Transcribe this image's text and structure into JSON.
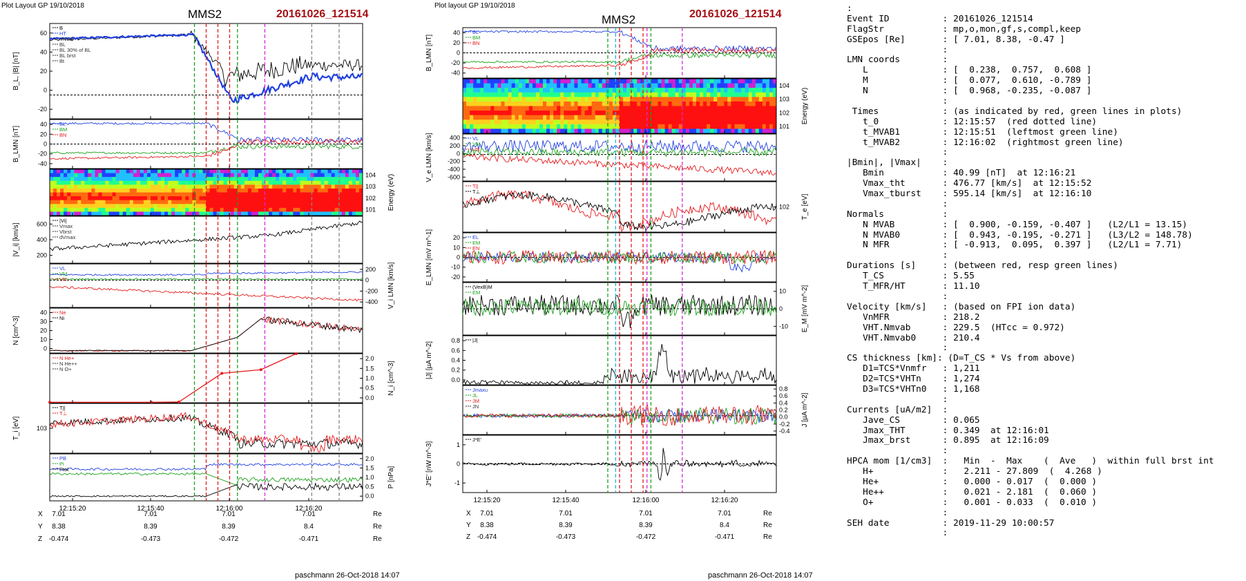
{
  "colors": {
    "black": "#000000",
    "red": "#e41a1c",
    "green": "#1ca01c",
    "blue": "#1f3fe0",
    "magenta": "#d62ad6",
    "cyan": "#18b8d8",
    "darkred": "#a50f15",
    "gray": "#888888"
  },
  "left_panel": {
    "header": "Plot Layout GP 19/10/2018",
    "title": "MMS2",
    "event": "20161026_121514",
    "footer": "paschmann 26-Oct-2018 14:07",
    "time_ticks": [
      "12:15:20",
      "12:15:40",
      "12:16:00",
      "12:16:20"
    ],
    "ephemeris": [
      {
        "label": "X",
        "values": [
          "7.01",
          "7.01",
          "7.01",
          "7.01"
        ],
        "unit": "Re"
      },
      {
        "label": "Y",
        "values": [
          "8.38",
          "8.39",
          "8.39",
          "8.4"
        ],
        "unit": "Re"
      },
      {
        "label": "Z",
        "values": [
          "-0.474",
          "-0.473",
          "-0.472",
          "-0.471"
        ],
        "unit": "Re"
      }
    ]
  },
  "right_panel": {
    "header": "Plot layout GP 19/10/2018",
    "title": "MMS2",
    "event": "20161026_121514",
    "footer": "paschmann 26-Oct-2018 14:07",
    "time_ticks": [
      "12:15:20",
      "12:15:40",
      "12:16:00",
      "12:16:20"
    ],
    "ephemeris": [
      {
        "label": "X",
        "values": [
          "7.01",
          "7.01",
          "7.01",
          "7.01"
        ],
        "unit": "Re"
      },
      {
        "label": "Y",
        "values": [
          "8.38",
          "8.39",
          "8.39",
          "8.4"
        ],
        "unit": "Re"
      },
      {
        "label": "Z",
        "values": [
          "-0.474",
          "-0.473",
          "-0.472",
          "-0.471"
        ],
        "unit": "Re"
      }
    ]
  },
  "chart_data": [
    {
      "type": "line",
      "panel": "left",
      "time_range": [
        "12:15:14",
        "12:16:34"
      ],
      "markers": {
        "green": [
          "12:15:51",
          "12:16:02"
        ],
        "red": [
          "12:15:54",
          "12:15:57",
          "12:16:00"
        ],
        "magenta": [
          "12:16:09"
        ],
        "gray": [
          "12:16:21",
          "12:16:28"
        ]
      },
      "subplots": [
        {
          "ylabel": "B_L, |B| [nT]",
          "ylim": [
            -20,
            60
          ],
          "yticks": [
            "60",
            "40",
            "20",
            "0",
            "-20"
          ],
          "axis": "left",
          "legend": [
            "B",
            "HT",
            "MVAB",
            "BL",
            "BL 30% of BL",
            "BL brst",
            "Bt"
          ],
          "series": [
            {
              "color": "black",
              "kind": "B_total"
            },
            {
              "color": "blue",
              "kind": "B_L"
            }
          ]
        },
        {
          "ylabel": "B_LMN [nT]",
          "ylim": [
            -50,
            50
          ],
          "yticks": [
            "40",
            "20",
            "0",
            "-20",
            "-40"
          ],
          "axis": "left",
          "legend": [
            "BL",
            "BM",
            "BN"
          ],
          "series": [
            {
              "color": "blue",
              "kind": "BL"
            },
            {
              "color": "green",
              "kind": "BM"
            },
            {
              "color": "red",
              "kind": "BN"
            }
          ]
        },
        {
          "ylabel": "Energy (eV)",
          "yticks": [
            "10^4",
            "10^3",
            "10^2",
            "10^1"
          ],
          "axis": "right",
          "kind": "spectrogram",
          "colorscale": "rainbow"
        },
        {
          "ylabel": "|V_i| [km/s]",
          "ylim": [
            0,
            600
          ],
          "yticks": [
            "600",
            "400",
            "200"
          ],
          "axis": "left",
          "legend": [
            "|Vi|",
            "Vmax",
            "Vbrst",
            "dVmax"
          ],
          "series": [
            {
              "color": "black",
              "kind": "Vi"
            }
          ]
        },
        {
          "ylabel": "V_i LMN [km/s]",
          "ylim": [
            -500,
            300
          ],
          "yticks": [
            "200",
            "0",
            "-200",
            "-400"
          ],
          "axis": "right",
          "legend": [
            "VL",
            "VM",
            "VN"
          ],
          "series": [
            {
              "color": "blue",
              "kind": "VL"
            },
            {
              "color": "green",
              "kind": "VM"
            },
            {
              "color": "red",
              "kind": "VN"
            }
          ]
        },
        {
          "ylabel": "N [cm^-3]",
          "ylim": [
            0,
            40
          ],
          "yticks": [
            "40",
            "30",
            "20",
            "10",
            "0"
          ],
          "axis": "left",
          "legend": [
            "Ne",
            "Ni"
          ],
          "series": [
            {
              "color": "red",
              "kind": "Ne"
            },
            {
              "color": "black",
              "kind": "Ni"
            }
          ]
        },
        {
          "ylabel": "N_i [cm^-3]",
          "ylim": [
            0,
            2.0
          ],
          "yticks": [
            "2.0",
            "1.5",
            "1.0",
            "0.5",
            "0.0"
          ],
          "axis": "right",
          "legend": [
            "N He+",
            "N He++",
            "N O+"
          ],
          "series": [
            {
              "name": "N He++",
              "color": "red",
              "x": [
                "12:15:14",
                "12:15:40",
                "12:15:47",
                "12:15:58",
                "12:16:08",
                "12:16:17"
              ],
              "y": [
                0.02,
                0.02,
                0.03,
                1.2,
                1.35,
                2.0
              ]
            }
          ]
        },
        {
          "ylabel": "T_i [eV]",
          "yticks": [
            "10^3"
          ],
          "axis": "left",
          "scale": "log",
          "legend": [
            "T||",
            "T⊥"
          ],
          "series": [
            {
              "color": "black",
              "kind": "Tpar"
            },
            {
              "color": "red",
              "kind": "Tperp"
            }
          ]
        },
        {
          "ylabel": "P [nPa]",
          "ylim": [
            0,
            2.0
          ],
          "yticks": [
            "2.0",
            "1.5",
            "1.0",
            "0.5",
            "0.0"
          ],
          "axis": "right",
          "legend": [
            "PB",
            "Pi",
            "Ptot"
          ],
          "series": [
            {
              "color": "blue",
              "kind": "Ptot"
            },
            {
              "color": "green",
              "kind": "PB"
            },
            {
              "color": "black",
              "kind": "Pi"
            }
          ]
        }
      ]
    },
    {
      "type": "line",
      "panel": "right",
      "time_range": [
        "12:15:14",
        "12:16:34"
      ],
      "markers": {
        "green": [
          "12:15:51",
          "12:16:02"
        ],
        "cyan": [
          "12:15:53"
        ],
        "red": [
          "12:15:54",
          "12:15:57",
          "12:16:00"
        ],
        "magenta": [
          "12:16:01",
          "12:16:10"
        ]
      },
      "subplots": [
        {
          "ylabel": "B_LMN [nT]",
          "ylim": [
            -50,
            50
          ],
          "yticks": [
            "40",
            "20",
            "0",
            "-20",
            "-40"
          ],
          "axis": "left",
          "legend": [
            "BL",
            "BM",
            "BN"
          ],
          "series": [
            {
              "color": "blue",
              "kind": "BL"
            },
            {
              "color": "green",
              "kind": "BM"
            },
            {
              "color": "red",
              "kind": "BN"
            }
          ]
        },
        {
          "ylabel": "Energy (eV)",
          "yticks": [
            "10^4",
            "10^3",
            "10^2",
            "10^1"
          ],
          "axis": "right",
          "kind": "spectrogram",
          "colorscale": "rainbow"
        },
        {
          "ylabel": "V_e LMN [km/s]",
          "ylim": [
            -650,
            500
          ],
          "yticks": [
            "400",
            "200",
            "0",
            "-200",
            "-400",
            "-600"
          ],
          "axis": "left",
          "legend": [
            "VL",
            "VM",
            "VN"
          ],
          "series": [
            {
              "color": "blue",
              "kind": "VeL"
            },
            {
              "color": "green",
              "kind": "VeM"
            },
            {
              "color": "red",
              "kind": "VeN"
            }
          ]
        },
        {
          "ylabel": "T_e [eV]",
          "yticks": [
            "10^2"
          ],
          "axis": "right",
          "scale": "log",
          "legend": [
            "T||",
            "T⊥"
          ],
          "series": [
            {
              "color": "red",
              "kind": "Te1"
            },
            {
              "color": "black",
              "kind": "Te2"
            }
          ]
        },
        {
          "ylabel": "E_LMN [mV m^-1]",
          "ylim": [
            -25,
            25
          ],
          "yticks": [
            "20",
            "10",
            "0",
            "-10",
            "-20"
          ],
          "axis": "left",
          "legend": [
            "EL",
            "EM",
            "EN"
          ],
          "series": [
            {
              "color": "blue",
              "kind": "EL"
            },
            {
              "color": "green",
              "kind": "EM"
            },
            {
              "color": "red",
              "kind": "EN"
            }
          ]
        },
        {
          "ylabel": "E_M [mV m^-2]",
          "ylim": [
            -15,
            15
          ],
          "yticks": [
            "10",
            "0",
            "-10"
          ],
          "axis": "right",
          "legend": [
            "(VexB)M",
            "EM"
          ],
          "series": [
            {
              "color": "black",
              "kind": "VexB"
            },
            {
              "color": "green",
              "kind": "EMe"
            }
          ]
        },
        {
          "ylabel": "|J| [µA m^-2]",
          "ylim": [
            0,
            0.9
          ],
          "yticks": [
            "0.8",
            "0.6",
            "0.4",
            "0.2",
            "0.0"
          ],
          "axis": "left",
          "legend": [
            "|J|"
          ],
          "series": [
            {
              "color": "black",
              "kind": "Jmag"
            }
          ]
        },
        {
          "ylabel": "J [µA m^-2]",
          "ylim": [
            -0.5,
            0.8
          ],
          "yticks": [
            "0.8",
            "0.6",
            "0.4",
            "0.2",
            "0.0",
            "-0.2",
            "-0.4"
          ],
          "axis": "right",
          "legend": [
            "Jmaxu",
            "JL",
            "JM",
            "JN"
          ],
          "series": [
            {
              "color": "blue",
              "kind": "JL"
            },
            {
              "color": "green",
              "kind": "JM"
            },
            {
              "color": "red",
              "kind": "JN"
            }
          ]
        },
        {
          "ylabel": "J*E' [nW m^-3]",
          "ylim": [
            -1.6,
            1.6
          ],
          "yticks": [
            "1",
            "0",
            "-1"
          ],
          "axis": "left",
          "legend": [
            "J*E'"
          ],
          "series": [
            {
              "color": "black",
              "kind": "JE"
            }
          ]
        }
      ]
    }
  ],
  "info_lines": [
    ":",
    "Event ID          : 20161026_121514",
    "FlagStr           : mp,o,mon,gf,s,compl,keep",
    "GSEpos [Re]       : [ 7.01, 8.38, -0.47 ]",
    "                  :",
    "LMN coords        :",
    "   L              : [  0.238,  0.757,  0.608 ]",
    "   M              : [  0.077,  0.610, -0.789 ]",
    "   N              : [  0.968, -0.235, -0.087 ]",
    "                  :",
    " Times            : (as indicated by red, green lines in plots)",
    "   t_0            : 12:15:57  (red dotted line)",
    "   t_MVAB1        : 12:15:51  (leftmost green line)",
    "   t_MVAB2        : 12:16:02  (rightmost green line)",
    "                  :",
    "|Bmin|, |Vmax|    :",
    "   Bmin           : 40.99 [nT]  at 12:16:21",
    "   Vmax_tht       : 476.77 [km/s]  at 12:15:52",
    "   Vmax_tburst    : 595.14 [km/s]  at 12:16:10",
    "                  :",
    "Normals           :",
    "   N MVAB         : [  0.900, -0.159, -0.407 ]   (L2/L1 = 13.15)",
    "   N MVAB0        : [  0.943, -0.195, -0.271 ]   (L3/L2 = 148.78)",
    "   N MFR          : [ -0.913,  0.095,  0.397 ]   (L2/L1 = 7.71)",
    "                  :",
    "Durations [s]     : (between red, resp green lines)",
    "   T_CS           : 5.55",
    "   T_MFR/HT       : 11.10",
    "                  :",
    "Velocity [km/s]   : (based on FPI ion data)",
    "   VnMFR          : 218.2",
    "   VHT.Nmvab      : 229.5  (HTcc = 0.972)",
    "   VHT.Nmvab0     : 210.4",
    "                  :",
    "CS thickness [km]: (D=T_CS * Vs from above)",
    "   D1=TCS*Vnmfr   : 1,211",
    "   D2=TCS*VHTn    : 1,274",
    "   D3=TCS*VHTn0   : 1,168",
    "                  :",
    "Currents [uA/m2]  :",
    "   Jave_CS        : 0.065",
    "   Jmax_THT       : 0.349  at 12:16:01",
    "   Jmax_brst      : 0.895  at 12:16:09",
    "                  :",
    "HPCA mom [1/cm3]  :   Min  -  Max    (  Ave   )  within full brst int",
    "   H+             :   2.211 - 27.809  (  4.268 )",
    "   He+            :   0.000 - 0.017  (  0.000 )",
    "   He++           :   0.021 - 2.181  (  0.060 )",
    "   O+             :   0.001 - 0.033  (  0.010 )",
    "                  :",
    "SEH date          : 2019-11-29 10:00:57",
    "                  :"
  ]
}
